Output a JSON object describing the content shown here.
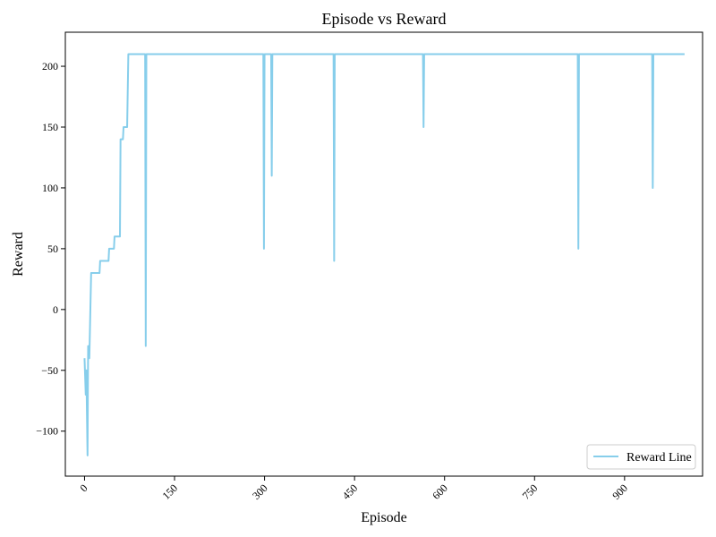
{
  "chart_data": {
    "type": "line",
    "title": "Episode vs Reward",
    "xlabel": "Episode",
    "ylabel": "Reward",
    "xlim": [
      -32,
      1030
    ],
    "ylim": [
      -137,
      228
    ],
    "x_ticks": [
      0,
      150,
      300,
      450,
      600,
      750,
      900
    ],
    "y_ticks": [
      -100,
      -50,
      0,
      50,
      100,
      150,
      200
    ],
    "x_tick_rotation_deg": 45,
    "grid": false,
    "legend_placement": "bottom-right",
    "series": [
      {
        "name": "Reward Line",
        "color": "#87ceeb",
        "points": [
          [
            0,
            -40
          ],
          [
            2,
            -70
          ],
          [
            3,
            -50
          ],
          [
            5,
            -120
          ],
          [
            6,
            -30
          ],
          [
            7,
            -40
          ],
          [
            8,
            -40
          ],
          [
            11,
            30
          ],
          [
            25,
            30
          ],
          [
            26,
            40
          ],
          [
            40,
            40
          ],
          [
            41,
            50
          ],
          [
            49,
            50
          ],
          [
            50,
            60
          ],
          [
            59,
            60
          ],
          [
            60,
            140
          ],
          [
            64,
            140
          ],
          [
            65,
            150
          ],
          [
            71,
            150
          ],
          [
            73,
            210
          ],
          [
            101,
            210
          ],
          [
            102,
            -30
          ],
          [
            103,
            210
          ],
          [
            298,
            210
          ],
          [
            299,
            50
          ],
          [
            300,
            210
          ],
          [
            311,
            210
          ],
          [
            312,
            110
          ],
          [
            313,
            210
          ],
          [
            415,
            210
          ],
          [
            416,
            40
          ],
          [
            417,
            210
          ],
          [
            564,
            210
          ],
          [
            565,
            150
          ],
          [
            566,
            210
          ],
          [
            822,
            210
          ],
          [
            823,
            50
          ],
          [
            824,
            210
          ],
          [
            946,
            210
          ],
          [
            947,
            100
          ],
          [
            948,
            210
          ],
          [
            1000,
            210
          ]
        ]
      }
    ]
  }
}
